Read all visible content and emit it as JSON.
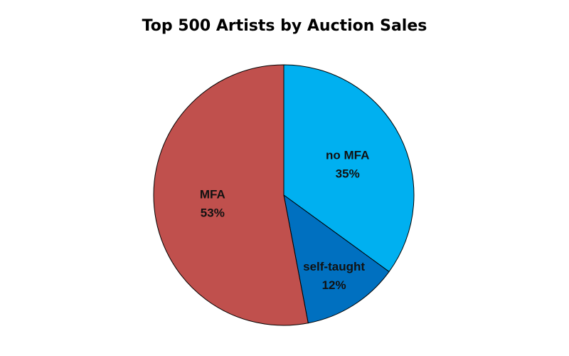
{
  "chart_data": {
    "type": "pie",
    "title": "Top 500 Artists by Auction Sales",
    "slices": [
      {
        "label": "no MFA",
        "value": 35,
        "value_label": "35%",
        "color": "#00B0F0"
      },
      {
        "label": "self-taught",
        "value": 12,
        "value_label": "12%",
        "color": "#0070C0"
      },
      {
        "label": "MFA",
        "value": 53,
        "value_label": "53%",
        "color": "#C0504D"
      }
    ],
    "legend": "none",
    "start_angle_deg": 0,
    "direction": "clockwise"
  }
}
